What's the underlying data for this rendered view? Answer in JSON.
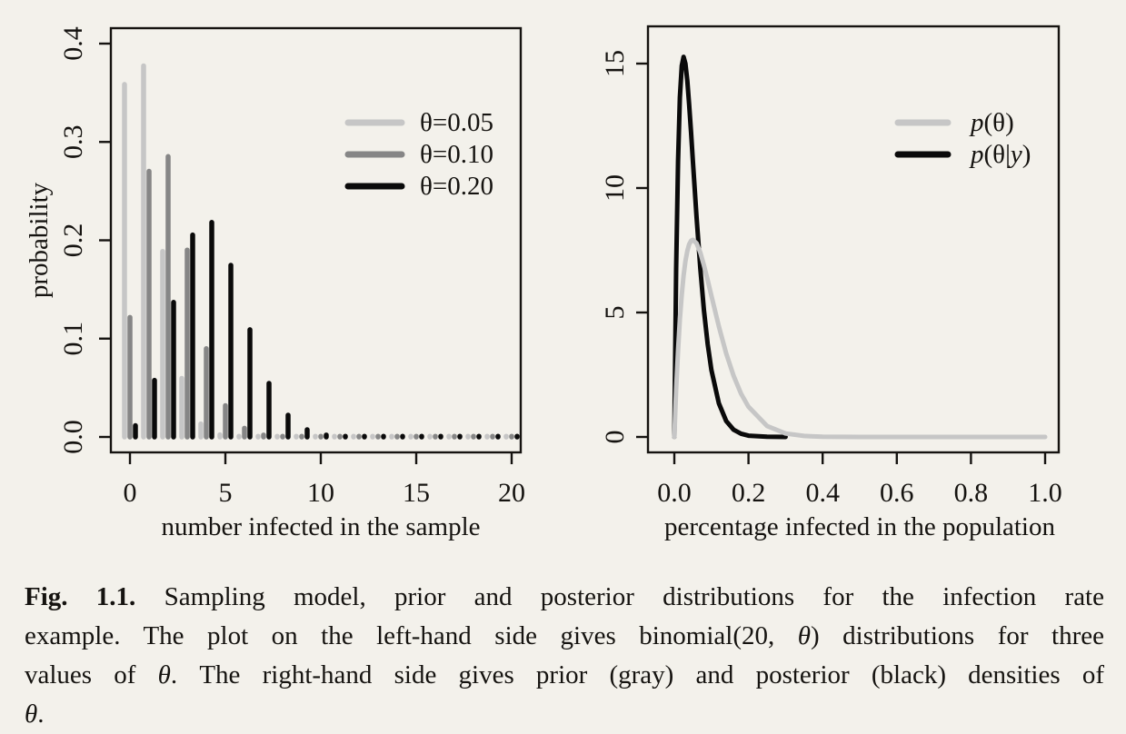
{
  "figure": {
    "background_color": "#f3f1eb",
    "ink_color": "#151310"
  },
  "caption": {
    "lines": [
      [
        {
          "text": "Fig. 1.1.",
          "style": "bold"
        },
        {
          "text": " Sampling model, prior and posterior distributions for the infection rate",
          "style": "normal"
        }
      ],
      [
        {
          "text": "example. The plot on the left-hand side gives binomial(20, ",
          "style": "normal"
        },
        {
          "text": "θ",
          "style": "italic"
        },
        {
          "text": ") distributions for three",
          "style": "normal"
        }
      ],
      [
        {
          "text": "values of ",
          "style": "normal"
        },
        {
          "text": "θ",
          "style": "italic"
        },
        {
          "text": ". The right-hand side gives prior (gray) and posterior (black) densities of",
          "style": "normal"
        }
      ],
      [
        {
          "text": "θ",
          "style": "italic"
        },
        {
          "text": ".",
          "style": "normal"
        }
      ]
    ]
  },
  "chart_data": [
    {
      "type": "bar",
      "title": "",
      "xlabel": "number infected in the sample",
      "ylabel": "probability",
      "xlim": [
        0,
        20
      ],
      "ylim": [
        0,
        0.4
      ],
      "grid": false,
      "legend_position": "upper right",
      "x_ticks": [
        {
          "value": 0,
          "label": "0"
        },
        {
          "value": 5,
          "label": "5"
        },
        {
          "value": 10,
          "label": "10"
        },
        {
          "value": 15,
          "label": "15"
        },
        {
          "value": 20,
          "label": "20"
        }
      ],
      "y_ticks": [
        {
          "value": 0.0,
          "label": "0.0"
        },
        {
          "value": 0.1,
          "label": "0.1"
        },
        {
          "value": 0.2,
          "label": "0.2"
        },
        {
          "value": 0.3,
          "label": "0.3"
        },
        {
          "value": 0.4,
          "label": "0.4"
        }
      ],
      "categories": [
        0,
        1,
        2,
        3,
        4,
        5,
        6,
        7,
        8,
        9,
        10,
        11,
        12,
        13,
        14,
        15,
        16,
        17,
        18,
        19,
        20
      ],
      "series": [
        {
          "name": "θ=0.05",
          "color": "#c6c6c6",
          "values": [
            0.3585,
            0.3774,
            0.1887,
            0.0596,
            0.0133,
            0.0022,
            0.0003,
            0,
            0,
            0,
            0,
            0,
            0,
            0,
            0,
            0,
            0,
            0,
            0,
            0,
            0
          ]
        },
        {
          "name": "θ=0.10",
          "color": "#868686",
          "values": [
            0.1216,
            0.2702,
            0.2852,
            0.1901,
            0.0898,
            0.0319,
            0.0089,
            0.002,
            0.0004,
            0.0001,
            0,
            0,
            0,
            0,
            0,
            0,
            0,
            0,
            0,
            0,
            0
          ]
        },
        {
          "name": "θ=0.20",
          "color": "#0a0a0a",
          "values": [
            0.0115,
            0.0576,
            0.1369,
            0.2054,
            0.2182,
            0.1746,
            0.1091,
            0.0545,
            0.0222,
            0.0074,
            0.002,
            0.0005,
            0.0001,
            0,
            0,
            0,
            0,
            0,
            0,
            0,
            0
          ]
        }
      ]
    },
    {
      "type": "line",
      "title": "",
      "xlabel": "percentage infected in the population",
      "ylabel": "",
      "xlim": [
        0,
        1
      ],
      "ylim": [
        0,
        16.5
      ],
      "grid": false,
      "legend_position": "upper right",
      "x_ticks": [
        {
          "value": 0.0,
          "label": "0.0"
        },
        {
          "value": 0.2,
          "label": "0.2"
        },
        {
          "value": 0.4,
          "label": "0.4"
        },
        {
          "value": 0.6,
          "label": "0.6"
        },
        {
          "value": 0.8,
          "label": "0.8"
        },
        {
          "value": 1.0,
          "label": "1.0"
        }
      ],
      "y_ticks": [
        {
          "value": 0,
          "label": "0"
        },
        {
          "value": 5,
          "label": "5"
        },
        {
          "value": 10,
          "label": "10"
        },
        {
          "value": 15,
          "label": "15"
        }
      ],
      "x": [
        0,
        0.005,
        0.01,
        0.015,
        0.02,
        0.025,
        0.03,
        0.035,
        0.04,
        0.045,
        0.05,
        0.06,
        0.07,
        0.08,
        0.09,
        0.1,
        0.12,
        0.14,
        0.16,
        0.18,
        0.2,
        0.25,
        0.3,
        0.35,
        0.4,
        0.5,
        0.6,
        0.8,
        1.0
      ],
      "series": [
        {
          "name": "p(θ)",
          "color": "#c6c6c6",
          "values": [
            0,
            1.91,
            3.47,
            4.73,
            5.72,
            6.49,
            7.06,
            7.47,
            7.74,
            7.88,
            7.92,
            7.78,
            7.41,
            6.89,
            6.3,
            5.67,
            4.44,
            3.35,
            2.45,
            1.74,
            1.21,
            0.44,
            0.14,
            0.04,
            0.01,
            0,
            0,
            0,
            0
          ]
        },
        {
          "name": "p(θ|y)",
          "color": "#0a0a0a",
          "values": [
            0,
            6.74,
            11.08,
            13.64,
            14.92,
            15.27,
            15.0,
            14.31,
            13.35,
            12.25,
            11.09,
            8.81,
            6.77,
            5.08,
            3.73,
            2.69,
            1.35,
            0.64,
            0.29,
            0.13,
            0.05,
            0.01,
            0,
            null,
            null,
            null,
            null,
            null,
            null
          ]
        }
      ]
    }
  ]
}
